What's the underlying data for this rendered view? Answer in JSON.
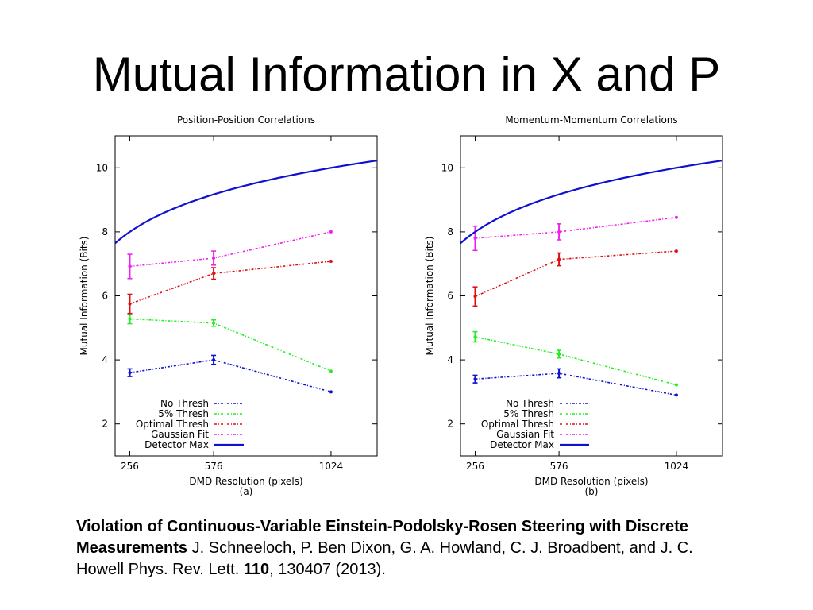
{
  "slide": {
    "title": "Mutual Information in X and P"
  },
  "caption": {
    "paper_title": "Violation of Continuous-Variable Einstein-Podolsky-Rosen Steering with Discrete Measurements",
    "authors": " J. Schneeloch, P. Ben Dixon, G. A. Howland, C. J. Broadbent, and J. C. Howell ",
    "journal": " Phys. Rev. Lett. ",
    "volume": "110",
    "pages_year": ", 130407 (2013)."
  },
  "colors": {
    "no_thresh": "#1010d0",
    "five_pct_thresh": "#22ee22",
    "optimal_thresh": "#dd1111",
    "gaussian_fit": "#ee22ee",
    "detector_max": "#1010d0"
  },
  "chart_data": [
    {
      "type": "line",
      "title": "Position-Position Correlations",
      "xlabel": "DMD Resolution (pixels)",
      "panel_label": "(a)",
      "ylabel": "Mutual Information (Bits)",
      "x_ticks": [
        "256",
        "576",
        "1024"
      ],
      "x_tick_values": [
        256,
        576,
        1024
      ],
      "y_ticks": [
        2,
        4,
        6,
        8,
        10
      ],
      "xlim": [
        200,
        1200
      ],
      "ylim": [
        1,
        11
      ],
      "legend_position": "bottom-left",
      "series": [
        {
          "name": "No Thresh",
          "color_key": "no_thresh",
          "style": "dotted",
          "x": [
            256,
            576,
            1024
          ],
          "y": [
            3.6,
            4.0,
            3.0
          ],
          "err": [
            0.12,
            0.14,
            0
          ]
        },
        {
          "name": "5% Thresh",
          "color_key": "five_pct_thresh",
          "style": "dotted",
          "x": [
            256,
            576,
            1024
          ],
          "y": [
            5.28,
            5.15,
            3.65
          ],
          "err": [
            0.15,
            0.1,
            0
          ]
        },
        {
          "name": "Optimal Thresh",
          "color_key": "optimal_thresh",
          "style": "dotted",
          "x": [
            256,
            576,
            1024
          ],
          "y": [
            5.75,
            6.7,
            7.08
          ],
          "err": [
            0.3,
            0.18,
            0
          ]
        },
        {
          "name": "Gaussian Fit",
          "color_key": "gaussian_fit",
          "style": "dotted",
          "x": [
            256,
            576,
            1024
          ],
          "y": [
            6.92,
            7.18,
            8.0
          ],
          "err": [
            0.38,
            0.22,
            0
          ]
        },
        {
          "name": "Detector Max",
          "color_key": "detector_max",
          "style": "solid",
          "curve": "log2",
          "x_start": 200,
          "x_end": 1200
        }
      ]
    },
    {
      "type": "line",
      "title": "Momentum-Momentum Correlations",
      "xlabel": "DMD Resolution (pixels)",
      "panel_label": "(b)",
      "ylabel": "Mutual Information (Bits)",
      "x_ticks": [
        "256",
        "576",
        "1024"
      ],
      "x_tick_values": [
        256,
        576,
        1024
      ],
      "y_ticks": [
        2,
        4,
        6,
        8,
        10
      ],
      "xlim": [
        200,
        1200
      ],
      "ylim": [
        1,
        11
      ],
      "legend_position": "bottom-left",
      "series": [
        {
          "name": "No Thresh",
          "color_key": "no_thresh",
          "style": "dotted",
          "x": [
            256,
            576,
            1024
          ],
          "y": [
            3.4,
            3.58,
            2.9
          ],
          "err": [
            0.12,
            0.14,
            0
          ]
        },
        {
          "name": "5% Thresh",
          "color_key": "five_pct_thresh",
          "style": "dotted",
          "x": [
            256,
            576,
            1024
          ],
          "y": [
            4.72,
            4.18,
            3.22
          ],
          "err": [
            0.16,
            0.12,
            0
          ]
        },
        {
          "name": "Optimal Thresh",
          "color_key": "optimal_thresh",
          "style": "dotted",
          "x": [
            256,
            576,
            1024
          ],
          "y": [
            5.98,
            7.14,
            7.4
          ],
          "err": [
            0.3,
            0.2,
            0
          ]
        },
        {
          "name": "Gaussian Fit",
          "color_key": "gaussian_fit",
          "style": "dotted",
          "x": [
            256,
            576,
            1024
          ],
          "y": [
            7.8,
            8.0,
            8.45
          ],
          "err": [
            0.38,
            0.25,
            0
          ]
        },
        {
          "name": "Detector Max",
          "color_key": "detector_max",
          "style": "solid",
          "curve": "log2",
          "x_start": 200,
          "x_end": 1200
        }
      ]
    }
  ]
}
